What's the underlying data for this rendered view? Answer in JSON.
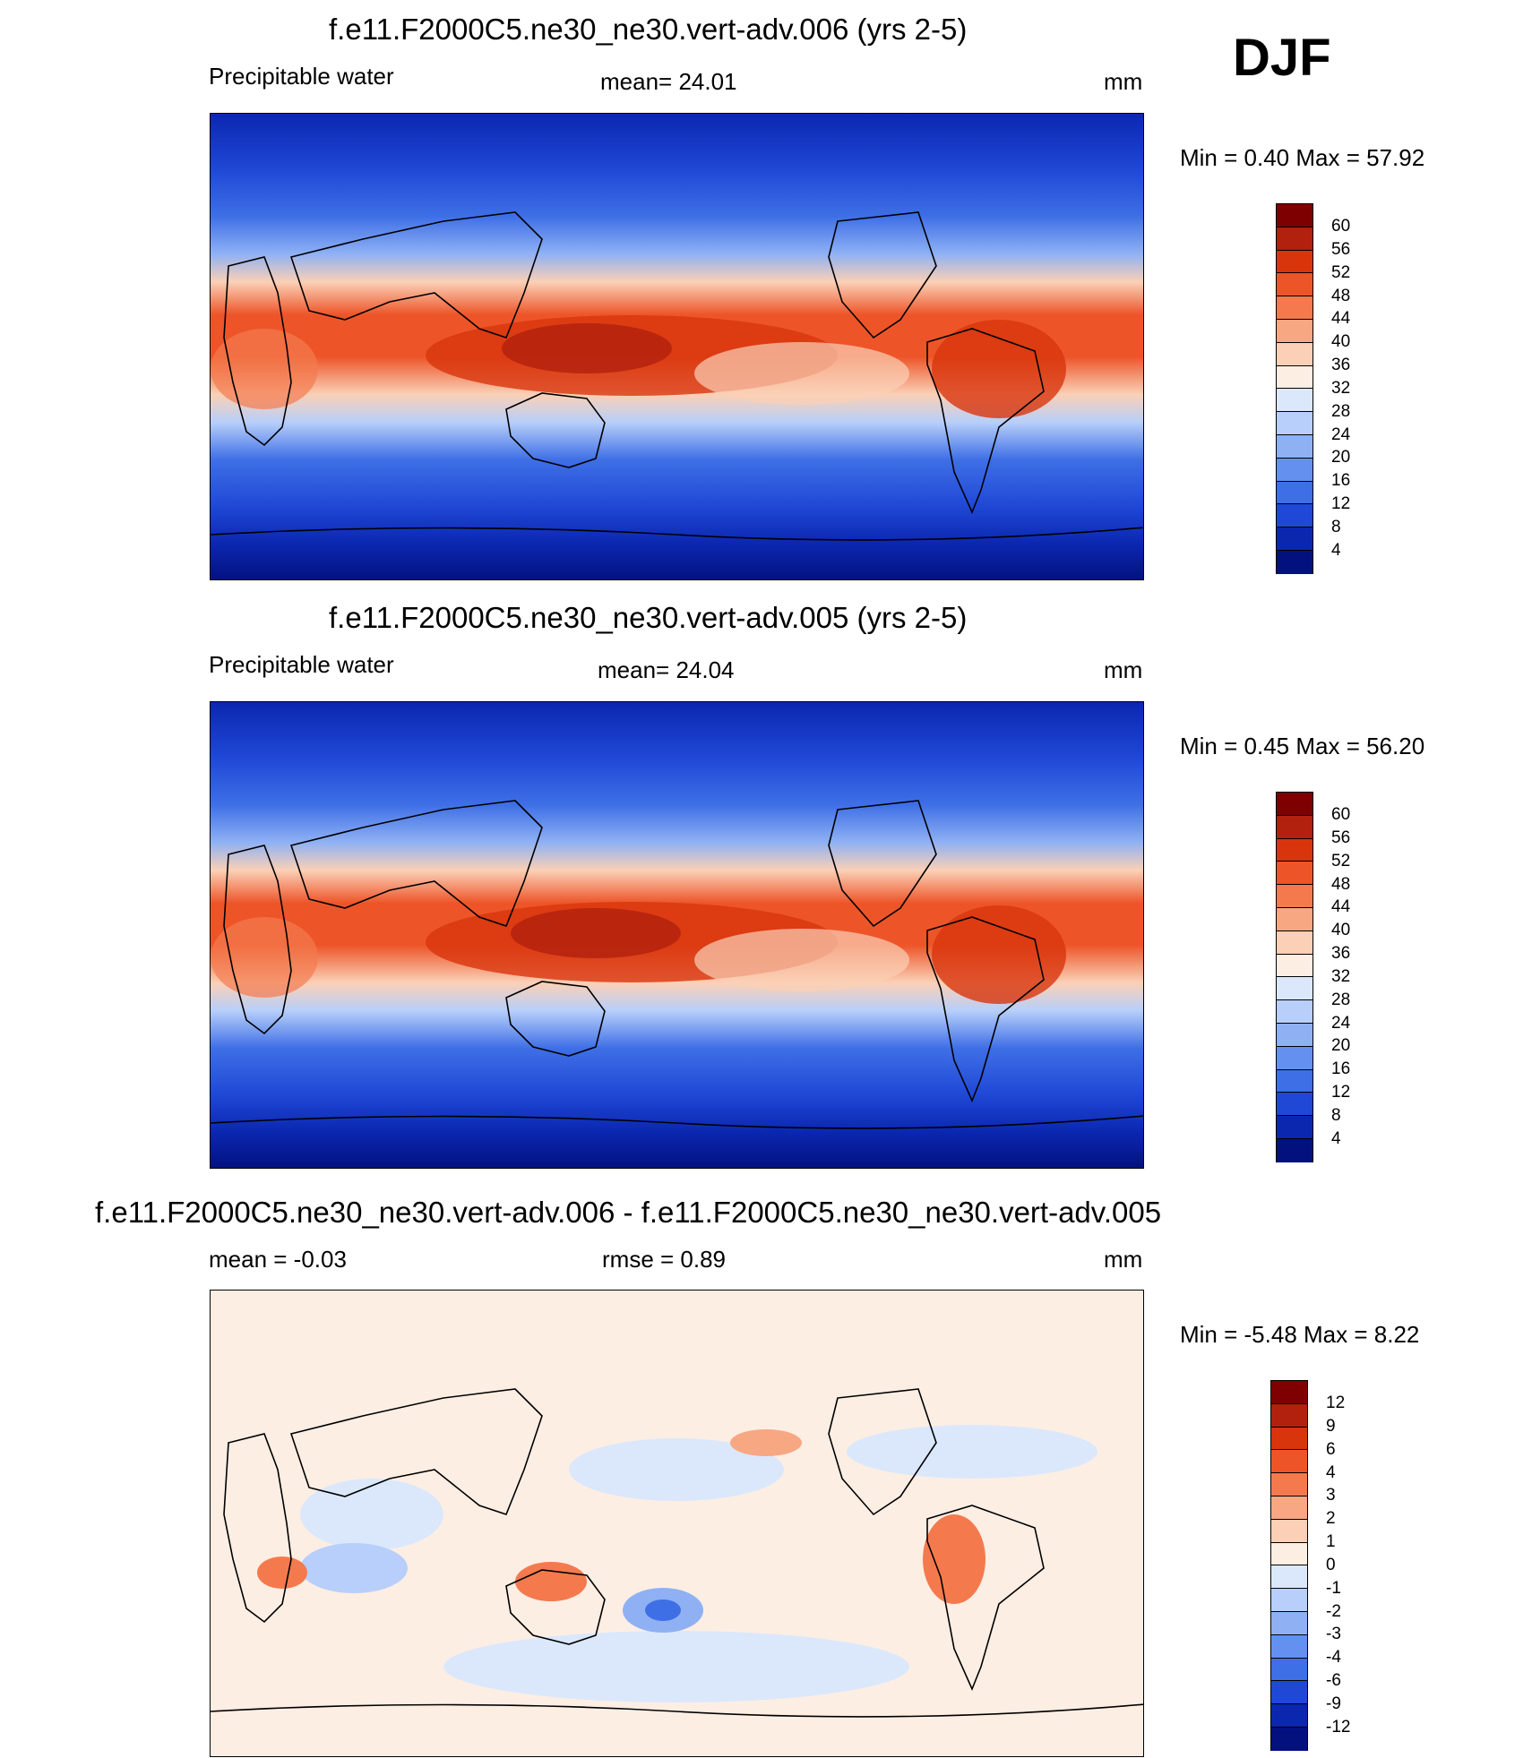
{
  "season_label": "DJF",
  "panels": [
    {
      "id": "top",
      "title": "f.e11.F2000C5.ne30_ne30.vert-adv.006 (yrs 2-5)",
      "left_label": "Precipitable water",
      "center_label": "mean=  24.01",
      "units": "mm",
      "minmax": "Min =    0.40 Max =  57.92",
      "colorbar": {
        "labels": [
          "60",
          "56",
          "52",
          "48",
          "44",
          "40",
          "36",
          "32",
          "28",
          "24",
          "20",
          "16",
          "12",
          "8",
          "4"
        ],
        "colors": [
          "#7f0000",
          "#b2200e",
          "#d8350c",
          "#ed5529",
          "#f47a4e",
          "#f8a783",
          "#fbd0b6",
          "#fdeee4",
          "#dbe8fb",
          "#b7cffa",
          "#8fb1f4",
          "#6491ef",
          "#3f6fe6",
          "#1f48d6",
          "#0b27b0",
          "#03117f"
        ]
      }
    },
    {
      "id": "middle",
      "title": "f.e11.F2000C5.ne30_ne30.vert-adv.005 (yrs 2-5)",
      "left_label": "Precipitable water",
      "center_label": "mean=  24.04",
      "units": "mm",
      "minmax": "Min =    0.45 Max =  56.20",
      "colorbar": {
        "labels": [
          "60",
          "56",
          "52",
          "48",
          "44",
          "40",
          "36",
          "32",
          "28",
          "24",
          "20",
          "16",
          "12",
          "8",
          "4"
        ],
        "colors": [
          "#7f0000",
          "#b2200e",
          "#d8350c",
          "#ed5529",
          "#f47a4e",
          "#f8a783",
          "#fbd0b6",
          "#fdeee4",
          "#dbe8fb",
          "#b7cffa",
          "#8fb1f4",
          "#6491ef",
          "#3f6fe6",
          "#1f48d6",
          "#0b27b0",
          "#03117f"
        ]
      }
    },
    {
      "id": "bottom",
      "title": "f.e11.F2000C5.ne30_ne30.vert-adv.006 - f.e11.F2000C5.ne30_ne30.vert-adv.005",
      "left_label": "mean =  -0.03",
      "center_label": "rmse =   0.89",
      "units": "mm",
      "minmax": "Min =  -5.48 Max =    8.22",
      "colorbar": {
        "labels": [
          "12",
          "9",
          "6",
          "4",
          "3",
          "2",
          "1",
          "0",
          "-1",
          "-2",
          "-3",
          "-4",
          "-6",
          "-9",
          "-12"
        ],
        "colors": [
          "#7f0000",
          "#b2200e",
          "#d8350c",
          "#ed5529",
          "#f47a4e",
          "#f8a783",
          "#fbd0b6",
          "#fdeee4",
          "#dbe8fb",
          "#b7cffa",
          "#8fb1f4",
          "#6491ef",
          "#3f6fe6",
          "#1f48d6",
          "#0b27b0",
          "#03117f"
        ]
      }
    }
  ]
}
